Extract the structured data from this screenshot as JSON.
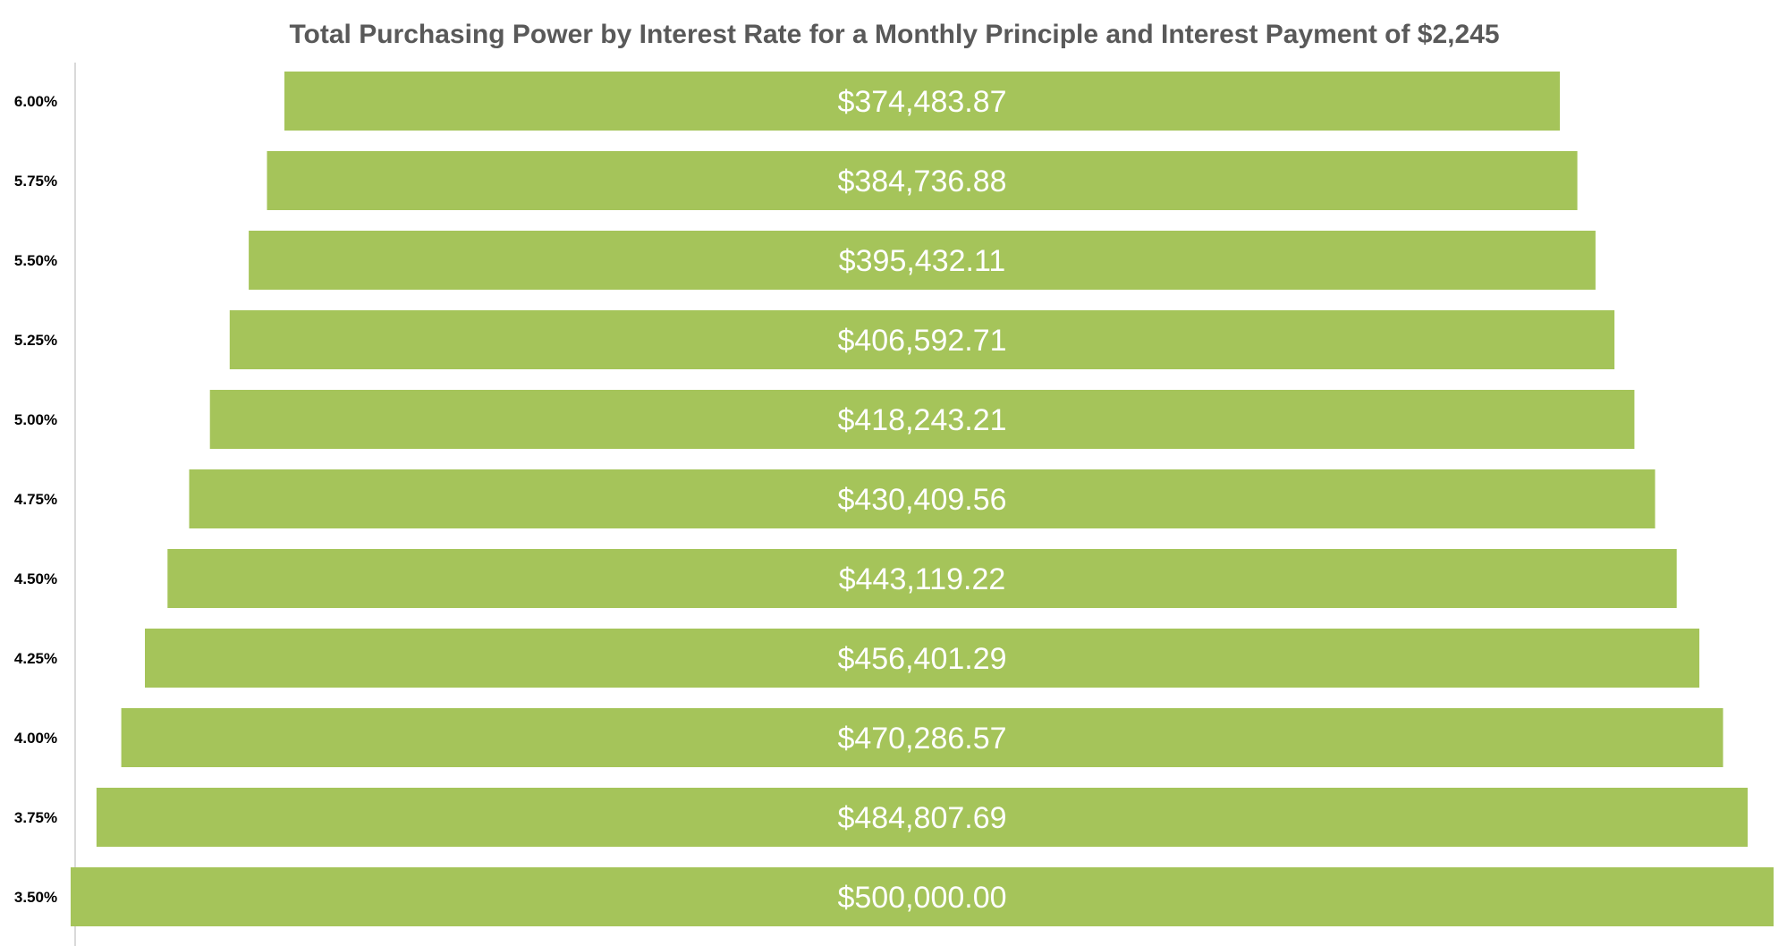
{
  "chart_data": {
    "type": "bar",
    "orientation": "horizontal-funnel",
    "title": "Total Purchasing Power by Interest Rate for a Monthly Principle and Interest Payment of $2,245",
    "xlabel": "",
    "ylabel": "",
    "categories": [
      "6.00%",
      "5.75%",
      "5.50%",
      "5.25%",
      "5.00%",
      "4.75%",
      "4.50%",
      "4.25%",
      "4.00%",
      "3.75%",
      "3.50%"
    ],
    "values": [
      374483.87,
      384736.88,
      395432.11,
      406592.71,
      418243.21,
      430409.56,
      443119.22,
      456401.29,
      470286.57,
      484807.69,
      500000.0
    ],
    "data_labels": [
      "$374,483.87",
      "$384,736.88",
      "$395,432.11",
      "$406,592.71",
      "$418,243.21",
      "$430,409.56",
      "$443,119.22",
      "$456,401.29",
      "$470,286.57",
      "$484,807.69",
      "$500,000.00"
    ],
    "grid": false,
    "legend": "none",
    "bar_color": "#a5c45a",
    "axis_line_color": "#d9d9d9"
  }
}
